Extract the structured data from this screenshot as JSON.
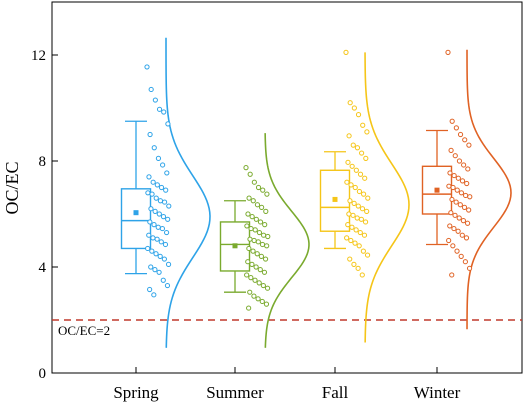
{
  "chart_data": {
    "type": "box",
    "title": "",
    "xlabel": "",
    "ylabel": "OC/EC",
    "ylim": [
      0,
      14
    ],
    "yticks": [
      0,
      4,
      8,
      12
    ],
    "grid": false,
    "categories": [
      "Spring",
      "Summer",
      "Fall",
      "Winter"
    ],
    "colors": [
      "#2ea3e8",
      "#7aaa2e",
      "#f5c518",
      "#e06224"
    ],
    "reference_line": {
      "y": 2,
      "label": "OC/EC=2",
      "color": "#c0392b"
    },
    "boxes": [
      {
        "category": "Spring",
        "whisker_low": 3.75,
        "q1": 4.7,
        "median": 5.75,
        "q3": 6.95,
        "whisker_high": 9.5,
        "mean": 6.05
      },
      {
        "category": "Summer",
        "whisker_low": 3.05,
        "q1": 3.85,
        "median": 4.85,
        "q3": 5.7,
        "whisker_high": 6.5,
        "mean": 4.8
      },
      {
        "category": "Fall",
        "whisker_low": 4.7,
        "q1": 5.35,
        "median": 6.25,
        "q3": 7.65,
        "whisker_high": 8.35,
        "mean": 6.55
      },
      {
        "category": "Winter",
        "whisker_low": 4.85,
        "q1": 6.0,
        "median": 6.75,
        "q3": 7.8,
        "whisker_high": 9.15,
        "mean": 6.9
      }
    ],
    "distributions": [
      {
        "category": "Spring",
        "mean": 5.9,
        "sd": 1.55,
        "min": 0.95,
        "max": 12.65
      },
      {
        "category": "Summer",
        "mean": 4.85,
        "sd": 1.25,
        "min": 0.95,
        "max": 9.05
      },
      {
        "category": "Fall",
        "mean": 6.35,
        "sd": 1.55,
        "min": 1.15,
        "max": 12.1
      },
      {
        "category": "Winter",
        "mean": 6.8,
        "sd": 1.3,
        "min": 1.65,
        "max": 12.2
      }
    ],
    "points": [
      {
        "category": "Spring",
        "values": [
          11.55,
          10.7,
          10.3,
          9.95,
          9.85,
          9.4,
          9.0,
          8.5,
          8.1,
          7.85,
          7.55,
          7.4,
          7.2,
          7.1,
          7.0,
          6.9,
          6.8,
          6.75,
          6.6,
          6.5,
          6.45,
          6.3,
          6.2,
          6.1,
          6.0,
          5.9,
          5.8,
          5.7,
          5.6,
          5.5,
          5.45,
          5.3,
          5.2,
          5.1,
          5.05,
          4.95,
          4.85,
          4.7,
          4.6,
          4.5,
          4.4,
          4.3,
          4.1,
          4.0,
          3.9,
          3.8,
          3.5,
          3.3,
          3.15,
          2.95
        ]
      },
      {
        "category": "Summer",
        "values": [
          7.75,
          7.5,
          7.2,
          7.0,
          6.9,
          6.75,
          6.6,
          6.5,
          6.35,
          6.25,
          6.1,
          6.0,
          5.9,
          5.8,
          5.7,
          5.6,
          5.55,
          5.45,
          5.4,
          5.3,
          5.2,
          5.15,
          5.05,
          5.0,
          4.95,
          4.85,
          4.8,
          4.7,
          4.6,
          4.5,
          4.4,
          4.3,
          4.2,
          4.1,
          4.0,
          3.9,
          3.8,
          3.7,
          3.6,
          3.5,
          3.4,
          3.3,
          3.2,
          3.05,
          2.9,
          2.8,
          2.7,
          2.6,
          2.45
        ]
      },
      {
        "category": "Fall",
        "values": [
          12.1,
          10.2,
          10.0,
          9.75,
          9.35,
          9.1,
          8.95,
          8.6,
          8.5,
          8.3,
          8.1,
          7.95,
          7.8,
          7.65,
          7.5,
          7.35,
          7.2,
          7.1,
          7.0,
          6.85,
          6.75,
          6.6,
          6.5,
          6.4,
          6.3,
          6.2,
          6.1,
          6.0,
          5.95,
          5.85,
          5.8,
          5.7,
          5.6,
          5.5,
          5.4,
          5.3,
          5.2,
          5.1,
          5.0,
          4.9,
          4.8,
          4.6,
          4.45,
          4.3,
          4.1,
          3.95,
          3.7
        ]
      },
      {
        "category": "Winter",
        "values": [
          12.1,
          9.5,
          9.25,
          9.0,
          8.8,
          8.6,
          8.4,
          8.2,
          8.0,
          7.85,
          7.7,
          7.55,
          7.45,
          7.35,
          7.25,
          7.15,
          7.05,
          7.0,
          6.9,
          6.8,
          6.7,
          6.65,
          6.55,
          6.45,
          6.35,
          6.25,
          6.15,
          6.05,
          5.95,
          5.85,
          5.75,
          5.65,
          5.55,
          5.45,
          5.35,
          5.2,
          5.1,
          5.0,
          4.8,
          4.6,
          4.4,
          4.2,
          3.95,
          3.7
        ]
      }
    ]
  }
}
